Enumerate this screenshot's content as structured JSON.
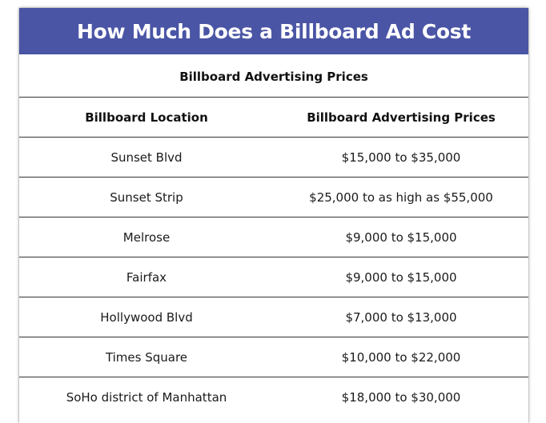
{
  "title": "How Much Does a Billboard Ad Cost",
  "table_caption": "Billboard Advertising Prices",
  "headers": {
    "location": "Billboard Location",
    "price": "Billboard Advertising Prices"
  },
  "rows": [
    {
      "location": "Sunset Blvd",
      "price": "$15,000 to $35,000"
    },
    {
      "location": "Sunset Strip",
      "price": "$25,000 to as high as $55,000"
    },
    {
      "location": "Melrose",
      "price": "$9,000 to $15,000"
    },
    {
      "location": "Fairfax",
      "price": "$9,000 to $15,000"
    },
    {
      "location": "Hollywood Blvd",
      "price": "$7,000 to $13,000"
    },
    {
      "location": "Times Square",
      "price": "$10,000 to $22,000"
    },
    {
      "location": "SoHo district of Manhattan",
      "price": "$18,000 to $30,000"
    }
  ],
  "colors": {
    "banner": "#4a55a5",
    "banner_text": "#ffffff"
  }
}
